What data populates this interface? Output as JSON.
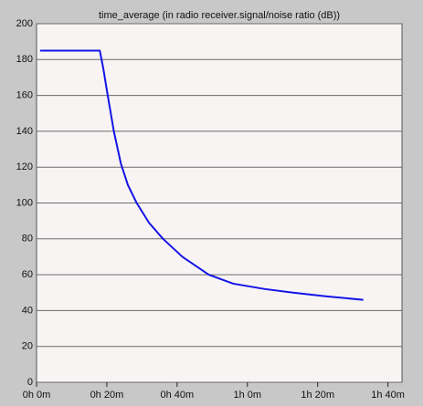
{
  "chart_data": {
    "type": "line",
    "title": "time_average (in radio receiver.signal/noise ratio (dB))",
    "x": [
      1,
      18,
      19,
      20,
      22,
      24,
      26,
      28.5,
      32,
      36,
      41.5,
      49,
      56,
      65,
      73,
      82,
      93
    ],
    "series": [
      {
        "color": "#1414e6",
        "values": [
          185,
          185,
          175,
          163,
          140,
          122,
          110,
          100,
          89,
          80,
          70,
          60,
          55,
          52,
          50,
          48,
          46
        ]
      }
    ],
    "xlim": [
      0,
      104
    ],
    "xticks": [
      {
        "value": 0,
        "label": "0h 0m"
      },
      {
        "value": 20,
        "label": "0h 20m"
      },
      {
        "value": 40,
        "label": "0h 40m"
      },
      {
        "value": 60,
        "label": "1h 0m"
      },
      {
        "value": 80,
        "label": "1h 20m"
      },
      {
        "value": 100,
        "label": "1h 40m"
      }
    ],
    "ylim": [
      0,
      200
    ],
    "yticks": [
      0,
      20,
      40,
      60,
      80,
      100,
      120,
      140,
      160,
      180,
      200
    ],
    "grid": true
  }
}
